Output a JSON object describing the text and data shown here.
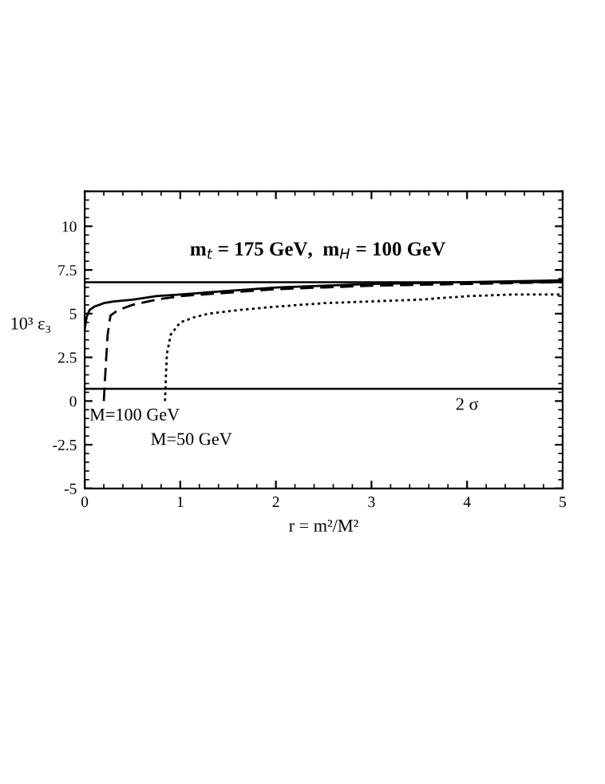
{
  "chart_data": {
    "type": "line",
    "xlabel": "r = m²/M²",
    "ylabel": "10³ ε₃",
    "xlim": [
      0,
      5
    ],
    "xticks": [
      0,
      1,
      2,
      3,
      4,
      5
    ],
    "ylim": [
      -5,
      12
    ],
    "yticks": [
      -5,
      -2.5,
      0,
      2.5,
      5,
      7.5,
      10
    ],
    "grid": false,
    "legend": false,
    "series": [
      {
        "color": "#000000",
        "line_style": "solid",
        "x": [
          0,
          0.02,
          0.05,
          0.1,
          0.2,
          0.3,
          0.5,
          0.75,
          1,
          1.5,
          2,
          2.5,
          3,
          4,
          5
        ],
        "values": [
          4.1,
          4.8,
          5.2,
          5.4,
          5.6,
          5.7,
          5.8,
          6.0,
          6.1,
          6.3,
          6.5,
          6.6,
          6.7,
          6.8,
          6.9
        ]
      },
      {
        "name": "M=100 GeV",
        "color": "#000000",
        "line_style": "dashed",
        "x": [
          0.2,
          0.22,
          0.24,
          0.27,
          0.35,
          0.5,
          0.75,
          1,
          1.5,
          2,
          2.5,
          3,
          4,
          5
        ],
        "values": [
          0,
          2.0,
          3.8,
          4.9,
          5.2,
          5.5,
          5.8,
          6.0,
          6.2,
          6.4,
          6.5,
          6.6,
          6.7,
          6.8
        ]
      },
      {
        "name": "M=50 GeV",
        "color": "#000000",
        "line_style": "dotted",
        "x": [
          0.84,
          0.85,
          0.86,
          0.9,
          1.0,
          1.15,
          1.3,
          1.6,
          2,
          2.5,
          3,
          3.5,
          4,
          4.5,
          5
        ],
        "values": [
          0,
          1.5,
          2.7,
          3.8,
          4.5,
          4.8,
          5.0,
          5.2,
          5.4,
          5.6,
          5.7,
          5.8,
          6.0,
          6.1,
          6.1
        ]
      }
    ],
    "ref_lines": [
      {
        "axis": "y",
        "value": 6.8,
        "color": "#000000",
        "line_style": "solid"
      },
      {
        "axis": "y",
        "value": 0.7,
        "label": "2 σ",
        "color": "#000000",
        "line_style": "solid"
      }
    ],
    "annotations": [
      "m$_{t}$ = 175 GeV,  m$_{H}$ = 100 GeV"
    ]
  }
}
